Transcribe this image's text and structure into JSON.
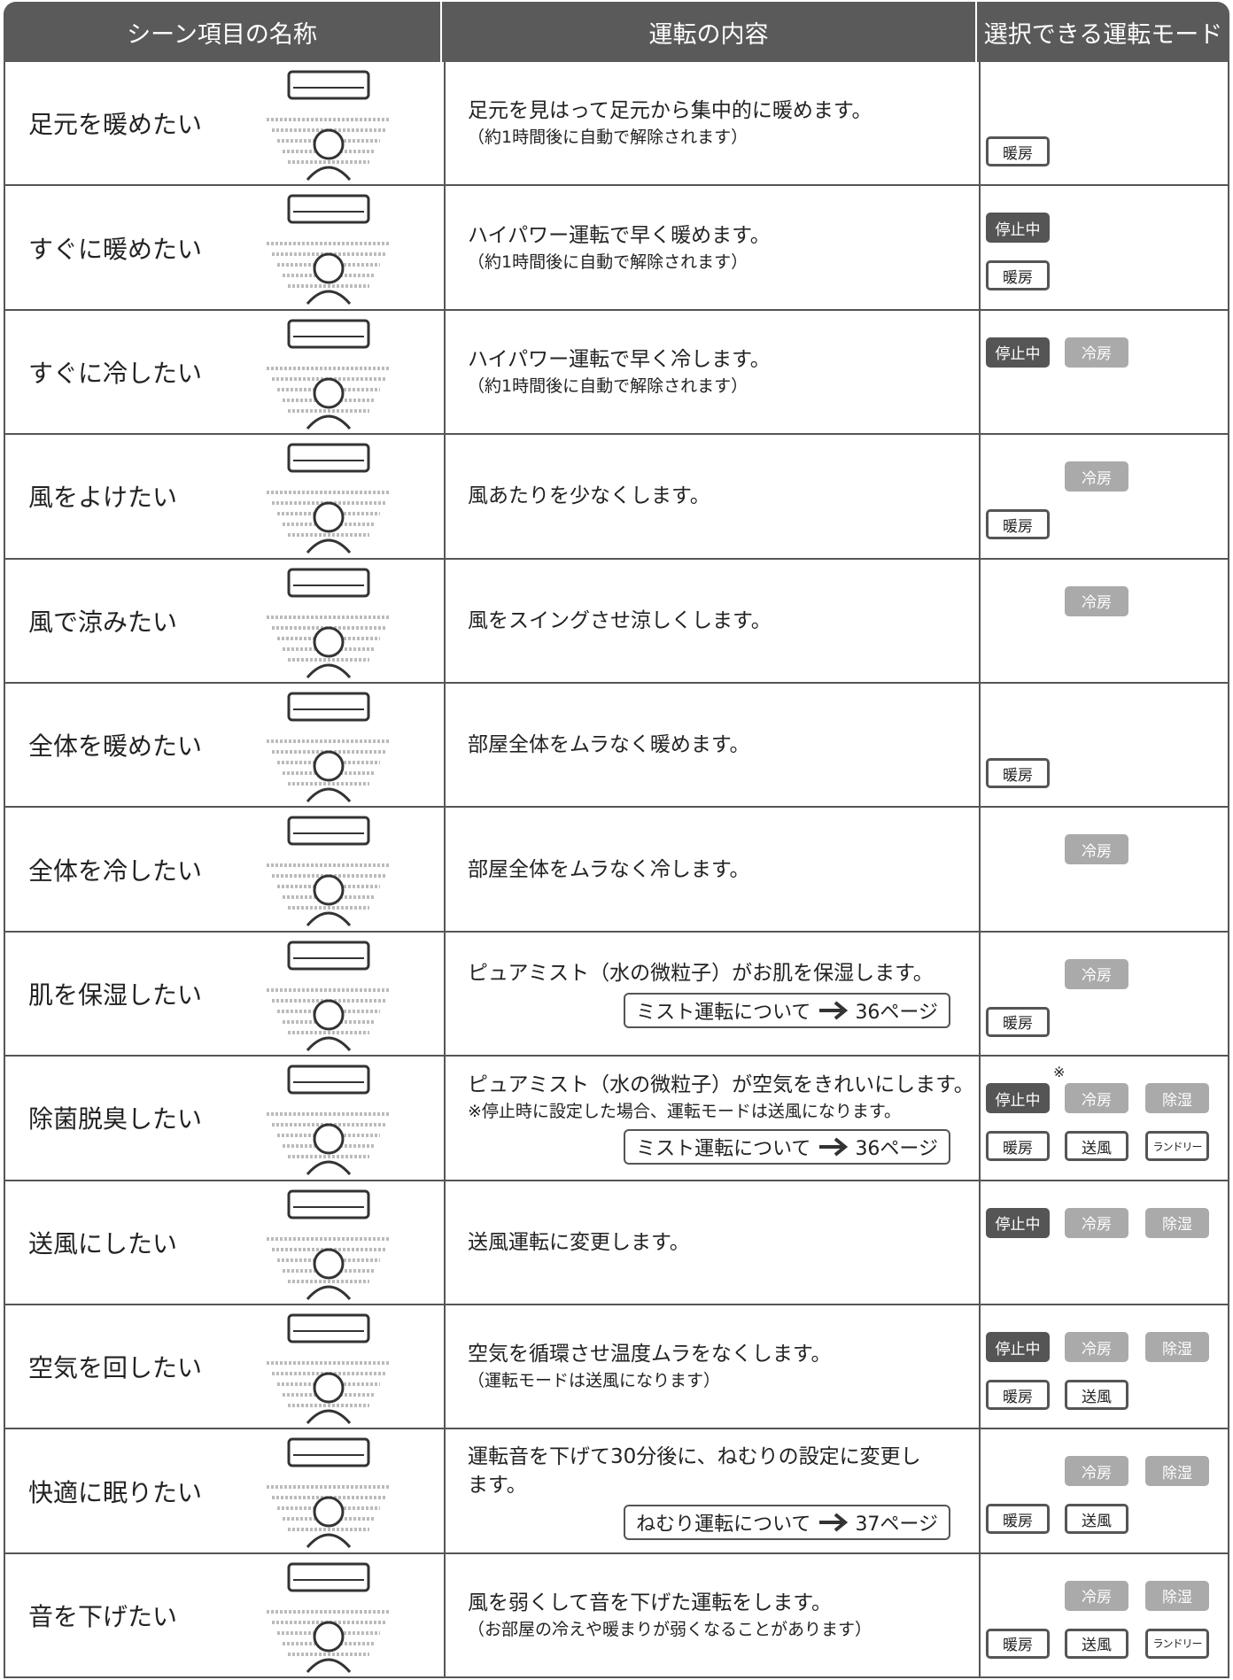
{
  "table": {
    "headers": [
      "シーン項目の名称",
      "運転の内容",
      "選択できる運転モード"
    ],
    "rows": [
      {
        "scene": "足元を暖めたい",
        "content": [
          "足元を見はって足元から集中的に暖めます。"
        ],
        "note": "（約1時間後に自動で解除されます）",
        "modes": [
          [],
          [
            "暖房"
          ]
        ]
      },
      {
        "scene": "すぐに暖めたい",
        "content": [
          "ハイパワー運転で早く暖めます。"
        ],
        "note": "（約1時間後に自動で解除されます）",
        "modes": [
          [
            "停止中"
          ],
          [
            "暖房"
          ]
        ]
      },
      {
        "scene": "すぐに冷したい",
        "content": [
          "ハイパワー運転で早く冷します。"
        ],
        "note": "（約1時間後に自動で解除されます）",
        "modes": [
          [
            "停止中",
            "冷房"
          ],
          []
        ]
      },
      {
        "scene": "風をよけたい",
        "content": [
          "風あたりを少なくします。"
        ],
        "modes": [
          [
            null,
            "冷房"
          ],
          [
            "暖房"
          ]
        ]
      },
      {
        "scene": "風で涼みたい",
        "content": [
          "風をスイングさせ涼しくします。"
        ],
        "modes": [
          [
            null,
            "冷房"
          ],
          []
        ]
      },
      {
        "scene": "全体を暖めたい",
        "content": [
          "部屋全体をムラなく暖めます。"
        ],
        "modes": [
          [],
          [
            "暖房"
          ]
        ]
      },
      {
        "scene": "全体を冷したい",
        "content": [
          "部屋全体をムラなく冷します。"
        ],
        "modes": [
          [
            null,
            "冷房"
          ],
          []
        ]
      },
      {
        "scene": "肌を保湿したい",
        "content": [
          "ピュアミスト（水の微粒子）がお肌を保湿します。"
        ],
        "link": {
          "text": "ミスト運転について",
          "page": "36ページ"
        },
        "modes": [
          [
            null,
            "冷房"
          ],
          [
            "暖房"
          ]
        ]
      },
      {
        "scene": "除菌脱臭したい",
        "content": [
          "ピュアミスト（水の微粒子）が空気をきれいにします。"
        ],
        "note": "※停止時に設定した場合、運転モードは送風になります。",
        "link": {
          "text": "ミスト運転について",
          "page": "36ページ"
        },
        "mode_note": "※",
        "modes": [
          [
            "停止中",
            "冷房",
            "除湿"
          ],
          [
            "暖房",
            "送風",
            "ランドリー"
          ]
        ]
      },
      {
        "scene": "送風にしたい",
        "content": [
          "送風運転に変更します。"
        ],
        "modes": [
          [
            "停止中",
            "冷房",
            "除湿"
          ],
          []
        ]
      },
      {
        "scene": "空気を回したい",
        "content": [
          "空気を循環させ温度ムラをなくします。"
        ],
        "note": "（運転モードは送風になります）",
        "modes": [
          [
            "停止中",
            "冷房",
            "除湿"
          ],
          [
            "暖房",
            "送風"
          ]
        ]
      },
      {
        "scene": "快適に眠りたい",
        "content": [
          "運転音を下げて30分後に、ねむりの設定に変更し",
          "ます。"
        ],
        "link": {
          "text": "ねむり運転について",
          "page": "37ページ"
        },
        "modes": [
          [
            null,
            "冷房",
            "除湿"
          ],
          [
            "暖房",
            "送風"
          ]
        ]
      },
      {
        "scene": "音を下げたい",
        "content": [
          "風を弱くして音を下げた運転をします。"
        ],
        "note": "（お部屋の冷えや暖まりが弱くなることがあります）",
        "modes": [
          [
            null,
            "冷房",
            "除湿"
          ],
          [
            "暖房",
            "送風",
            "ランドリー"
          ]
        ]
      }
    ]
  }
}
